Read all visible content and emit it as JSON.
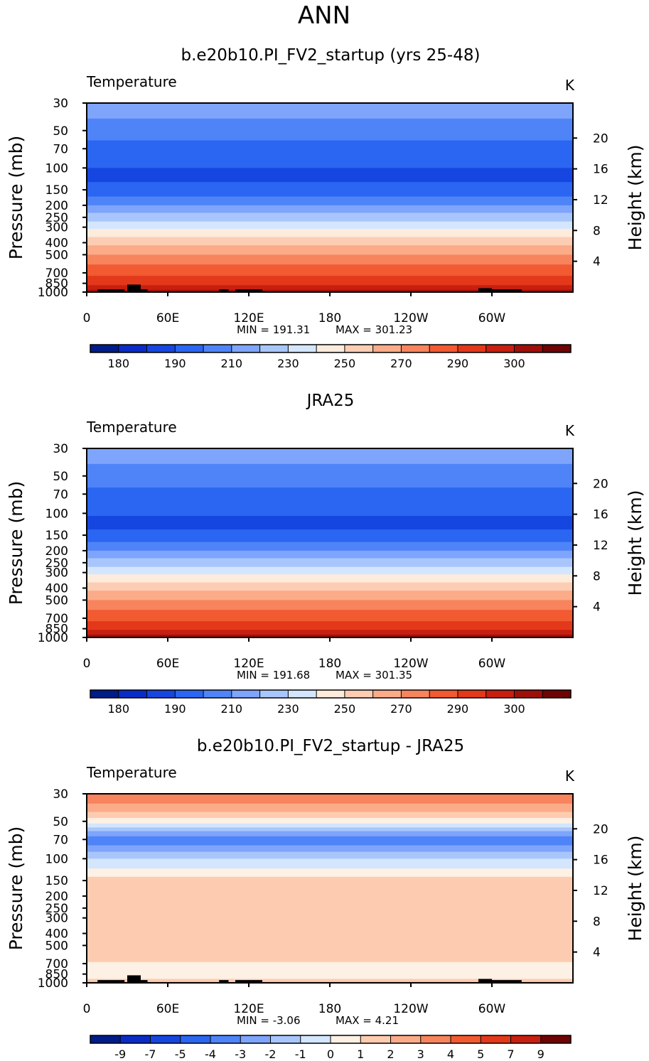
{
  "page": {
    "season": "ANN"
  },
  "colors": {
    "temp_levels": [
      "#001c88",
      "#0a2cc6",
      "#1646e0",
      "#2b66f2",
      "#4e84f8",
      "#7ea5fb",
      "#a9c6fc",
      "#d3e6fd",
      "#fdecdc",
      "#fdcdb3",
      "#fbab88",
      "#f7845d",
      "#f25a31",
      "#e3381a",
      "#c71f10",
      "#9e0f09",
      "#6e0404"
    ],
    "diff_levels": [
      "#001c88",
      "#0a2cc6",
      "#1646e0",
      "#2b66f2",
      "#4e84f8",
      "#7ea5fb",
      "#a9c6fc",
      "#d3e6fd",
      "#fdf0e4",
      "#fdccb0",
      "#fbab88",
      "#f7845d",
      "#f25a31",
      "#e3381a",
      "#c71f10",
      "#6e0404"
    ]
  },
  "chart_data": [
    {
      "type": "heatmap",
      "title": "b.e20b10.PI_FV2_startup (yrs 25-48)",
      "variable": "Temperature",
      "units": "K",
      "ylabel": "Pressure (mb)",
      "ylabel_right": "Height (km)",
      "x_ticks": [
        "0",
        "60E",
        "120E",
        "180",
        "120W",
        "60W"
      ],
      "x_tick_lon": [
        0,
        60,
        120,
        180,
        240,
        300
      ],
      "xlim": [
        0,
        360
      ],
      "y_ticks": [
        "30",
        "50",
        "70",
        "100",
        "150",
        "200",
        "250",
        "300",
        "400",
        "500",
        "700",
        "850",
        "1000"
      ],
      "y_tick_p": [
        30,
        50,
        70,
        100,
        150,
        200,
        250,
        300,
        400,
        500,
        700,
        850,
        1000
      ],
      "ylim": [
        1000,
        30
      ],
      "y_scale": "log",
      "height_ticks": [
        "4",
        "8",
        "12",
        "16",
        "20"
      ],
      "height_km": [
        4,
        8,
        12,
        16,
        20
      ],
      "min_label": "MIN = 191.31",
      "max_label": "MAX = 301.23",
      "min": 191.31,
      "max": 301.23,
      "colorbar_labels": [
        "180",
        "190",
        "210",
        "230",
        "250",
        "270",
        "290",
        "300"
      ],
      "topography": [
        [
          8,
          28,
          950
        ],
        [
          30,
          40,
          870
        ],
        [
          40,
          45,
          950
        ],
        [
          98,
          105,
          950
        ],
        [
          110,
          130,
          950
        ],
        [
          290,
          300,
          930
        ],
        [
          300,
          322,
          950
        ]
      ],
      "field": [
        {
          "p": 30,
          "bands": [
            [
              0,
              360,
              5
            ]
          ]
        },
        {
          "p": 40,
          "bands": [
            [
              0,
              360,
              4
            ]
          ]
        },
        {
          "p": 60,
          "bands": [
            [
              0,
              360,
              3
            ]
          ]
        },
        {
          "p": 100,
          "bands": [
            [
              0,
              360,
              2
            ]
          ]
        },
        {
          "p": 130,
          "bands": [
            [
              0,
              360,
              3
            ]
          ]
        },
        {
          "p": 170,
          "bands": [
            [
              0,
              360,
              4
            ]
          ]
        },
        {
          "p": 200,
          "bands": [
            [
              0,
              360,
              5
            ]
          ]
        },
        {
          "p": 230,
          "bands": [
            [
              0,
              360,
              6
            ]
          ]
        },
        {
          "p": 270,
          "bands": [
            [
              0,
              360,
              7
            ]
          ]
        },
        {
          "p": 310,
          "bands": [
            [
              0,
              360,
              8
            ]
          ]
        },
        {
          "p": 360,
          "bands": [
            [
              0,
              360,
              9
            ]
          ]
        },
        {
          "p": 420,
          "bands": [
            [
              0,
              360,
              10
            ]
          ]
        },
        {
          "p": 500,
          "bands": [
            [
              0,
              360,
              11
            ]
          ]
        },
        {
          "p": 600,
          "bands": [
            [
              0,
              360,
              12
            ]
          ]
        },
        {
          "p": 740,
          "bands": [
            [
              0,
              360,
              13
            ]
          ]
        },
        {
          "p": 880,
          "bands": [
            [
              0,
              360,
              14
            ]
          ]
        },
        {
          "p": 960,
          "bands": [
            [
              0,
              360,
              15
            ]
          ]
        }
      ]
    },
    {
      "type": "heatmap",
      "title": "JRA25",
      "variable": "Temperature",
      "units": "K",
      "ylabel": "Pressure (mb)",
      "ylabel_right": "Height (km)",
      "x_ticks": [
        "0",
        "60E",
        "120E",
        "180",
        "120W",
        "60W"
      ],
      "x_tick_lon": [
        0,
        60,
        120,
        180,
        240,
        300
      ],
      "xlim": [
        0,
        360
      ],
      "y_ticks": [
        "30",
        "50",
        "70",
        "100",
        "150",
        "200",
        "250",
        "300",
        "400",
        "500",
        "700",
        "850",
        "1000"
      ],
      "y_tick_p": [
        30,
        50,
        70,
        100,
        150,
        200,
        250,
        300,
        400,
        500,
        700,
        850,
        1000
      ],
      "ylim": [
        1000,
        30
      ],
      "y_scale": "log",
      "height_ticks": [
        "4",
        "8",
        "12",
        "16",
        "20"
      ],
      "height_km": [
        4,
        8,
        12,
        16,
        20
      ],
      "min_label": "MIN = 191.68",
      "max_label": "MAX = 301.35",
      "min": 191.68,
      "max": 301.35,
      "colorbar_labels": [
        "180",
        "190",
        "210",
        "230",
        "250",
        "270",
        "290",
        "300"
      ],
      "topography": [],
      "field": [
        {
          "p": 30,
          "bands": [
            [
              0,
              360,
              5
            ]
          ]
        },
        {
          "p": 40,
          "bands": [
            [
              0,
              360,
              4
            ]
          ]
        },
        {
          "p": 62,
          "bands": [
            [
              0,
              360,
              3
            ]
          ]
        },
        {
          "p": 105,
          "bands": [
            [
              0,
              360,
              2
            ]
          ]
        },
        {
          "p": 135,
          "bands": [
            [
              0,
              360,
              3
            ]
          ]
        },
        {
          "p": 170,
          "bands": [
            [
              0,
              360,
              4
            ]
          ]
        },
        {
          "p": 200,
          "bands": [
            [
              0,
              360,
              5
            ]
          ]
        },
        {
          "p": 230,
          "bands": [
            [
              0,
              360,
              6
            ]
          ]
        },
        {
          "p": 270,
          "bands": [
            [
              0,
              360,
              7
            ]
          ]
        },
        {
          "p": 310,
          "bands": [
            [
              0,
              360,
              8
            ]
          ]
        },
        {
          "p": 360,
          "bands": [
            [
              0,
              360,
              9
            ]
          ]
        },
        {
          "p": 420,
          "bands": [
            [
              0,
              360,
              10
            ]
          ]
        },
        {
          "p": 500,
          "bands": [
            [
              0,
              360,
              11
            ]
          ]
        },
        {
          "p": 600,
          "bands": [
            [
              0,
              360,
              12
            ]
          ]
        },
        {
          "p": 740,
          "bands": [
            [
              0,
              360,
              13
            ]
          ]
        },
        {
          "p": 870,
          "bands": [
            [
              0,
              360,
              14
            ]
          ]
        },
        {
          "p": 950,
          "bands": [
            [
              0,
              360,
              15
            ]
          ]
        }
      ]
    },
    {
      "type": "heatmap",
      "title": "b.e20b10.PI_FV2_startup - JRA25",
      "variable": "Temperature",
      "units": "K",
      "ylabel": "Pressure (mb)",
      "ylabel_right": "Height (km)",
      "x_ticks": [
        "0",
        "60E",
        "120E",
        "180",
        "120W",
        "60W"
      ],
      "x_tick_lon": [
        0,
        60,
        120,
        180,
        240,
        300
      ],
      "xlim": [
        0,
        360
      ],
      "y_ticks": [
        "30",
        "50",
        "70",
        "100",
        "150",
        "200",
        "250",
        "300",
        "400",
        "500",
        "700",
        "850",
        "1000"
      ],
      "y_tick_p": [
        30,
        50,
        70,
        100,
        150,
        200,
        250,
        300,
        400,
        500,
        700,
        850,
        1000
      ],
      "ylim": [
        1000,
        30
      ],
      "y_scale": "log",
      "height_ticks": [
        "4",
        "8",
        "12",
        "16",
        "20"
      ],
      "height_km": [
        4,
        8,
        12,
        16,
        20
      ],
      "min_label": "MIN =   -3.06",
      "max_label": "MAX =    4.21",
      "min": -3.06,
      "max": 4.21,
      "colorbar_labels": [
        "-9",
        "-7",
        "-5",
        "-4",
        "-3",
        "-2",
        "-1",
        "0",
        "1",
        "2",
        "3",
        "4",
        "5",
        "7",
        "9"
      ],
      "topography": [
        [
          8,
          28,
          950
        ],
        [
          30,
          40,
          870
        ],
        [
          40,
          45,
          950
        ],
        [
          98,
          105,
          950
        ],
        [
          110,
          130,
          950
        ],
        [
          290,
          300,
          930
        ],
        [
          300,
          322,
          950
        ]
      ],
      "field": [
        {
          "p": 30,
          "bands": [
            [
              0,
              360,
              11
            ]
          ]
        },
        {
          "p": 36,
          "bands": [
            [
              0,
              360,
              10
            ]
          ]
        },
        {
          "p": 42,
          "bands": [
            [
              0,
              360,
              9
            ]
          ]
        },
        {
          "p": 47,
          "bands": [
            [
              0,
              360,
              8
            ]
          ]
        },
        {
          "p": 52,
          "bands": [
            [
              0,
              360,
              7
            ]
          ]
        },
        {
          "p": 56,
          "bands": [
            [
              0,
              360,
              6
            ]
          ]
        },
        {
          "p": 60,
          "bands": [
            [
              0,
              360,
              5
            ]
          ]
        },
        {
          "p": 66,
          "bands": [
            [
              0,
              360,
              4
            ]
          ]
        },
        {
          "p": 78,
          "bands": [
            [
              0,
              360,
              5
            ]
          ]
        },
        {
          "p": 88,
          "bands": [
            [
              0,
              360,
              6
            ]
          ]
        },
        {
          "p": 100,
          "bands": [
            [
              0,
              360,
              7
            ]
          ]
        },
        {
          "p": 120,
          "bands": [
            [
              0,
              360,
              8
            ]
          ]
        },
        {
          "p": 140,
          "bands": [
            [
              0,
              360,
              9
            ]
          ]
        },
        {
          "p": 680,
          "bands": [
            [
              0,
              360,
              8
            ]
          ]
        },
        {
          "p": 930,
          "bands": [
            [
              0,
              360,
              9
            ]
          ]
        },
        {
          "p": 980,
          "bands": [
            [
              0,
              360,
              10
            ]
          ]
        }
      ]
    }
  ]
}
